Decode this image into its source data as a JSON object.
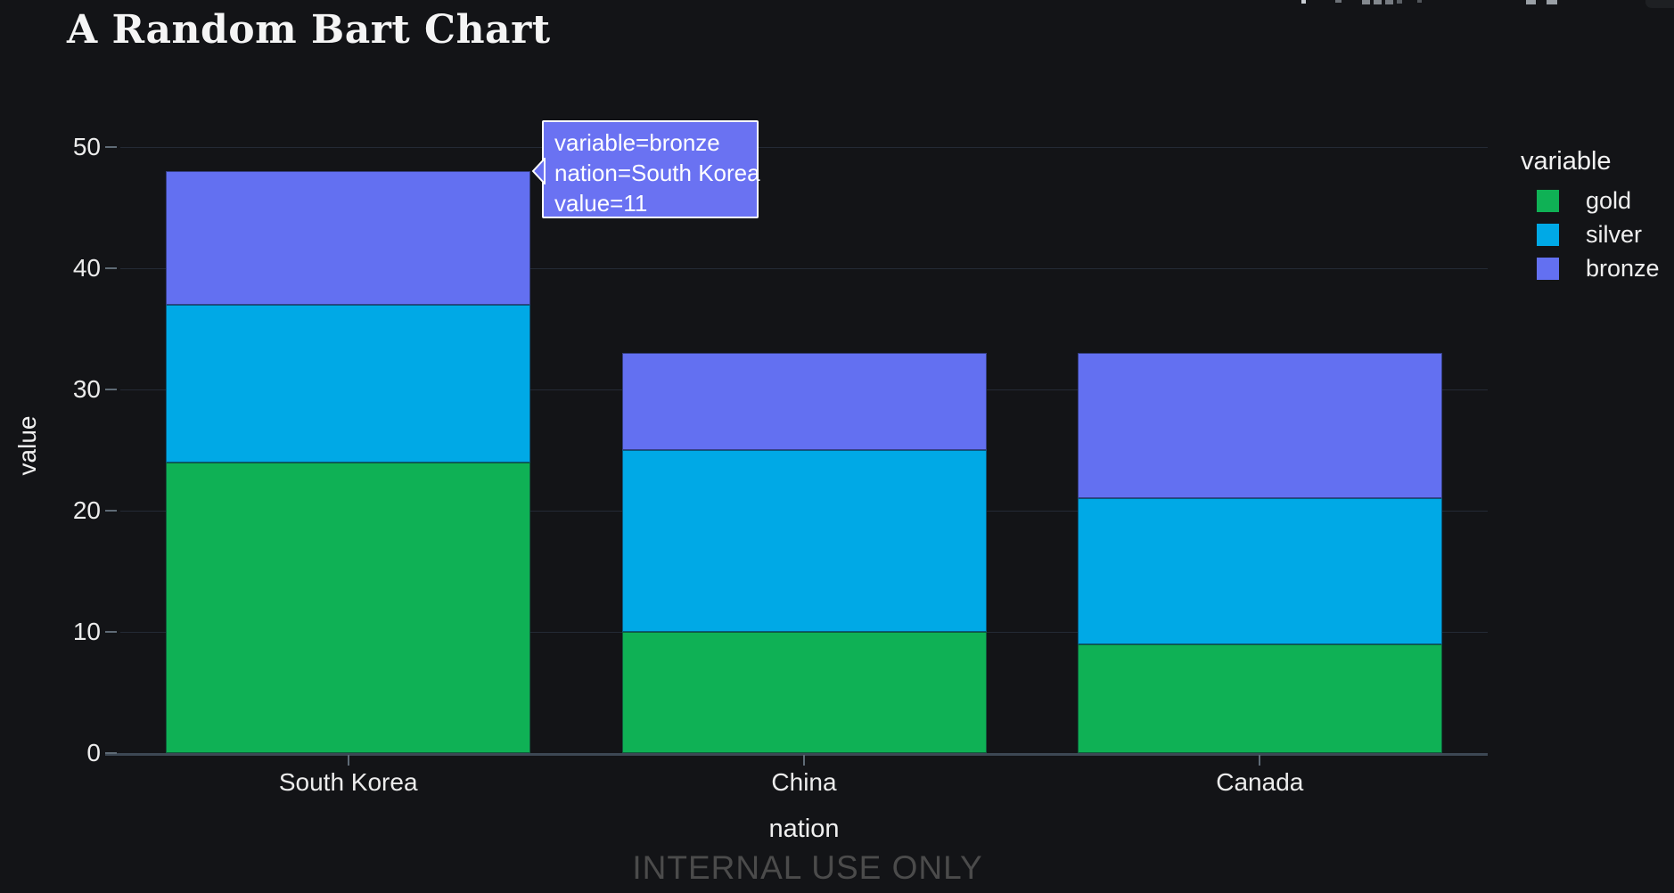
{
  "title": "A Random Bart Chart",
  "watermark": "INTERNAL USE ONLY",
  "legend": {
    "title": "variable"
  },
  "tooltip": {
    "line1": "variable=bronze",
    "line2": "nation=South Korea",
    "line3": "value=11",
    "background": "#6a72f2",
    "border_color": "#ffffff",
    "points_to": "South Korea bronze segment"
  },
  "colors": {
    "background": "#131417",
    "grid": "rgba(130,160,210,0.16)",
    "axis_line": "#3d4854",
    "tick": "#5f6b76",
    "label": "#ececec",
    "watermark": "#4b4b4b"
  },
  "toolbar": {
    "icons": [
      "cut-off-toolbar-icon-1",
      "cut-off-toolbar-icon-2",
      "cut-off-toolbar-icon-3",
      "cut-off-toolbar-icon-4",
      "cut-off-toolbar-icon-5",
      "cut-off-toolbar-icon-6",
      "cut-off-toolbar-icon-7",
      "cut-off-toolbar-icon-8",
      "window-corner-tab"
    ]
  },
  "chart_data": {
    "type": "bar",
    "stacked": true,
    "title": "A Random Bart Chart",
    "xlabel": "nation",
    "ylabel": "value",
    "categories": [
      "South Korea",
      "China",
      "Canada"
    ],
    "series": [
      {
        "name": "gold",
        "color": "#0fb155",
        "values": [
          24,
          10,
          9
        ]
      },
      {
        "name": "silver",
        "color": "#00a9e6",
        "values": [
          13,
          15,
          12
        ]
      },
      {
        "name": "bronze",
        "color": "#6370f1",
        "values": [
          11,
          8,
          12
        ]
      }
    ],
    "stack_totals": [
      48,
      33,
      33
    ],
    "ylim": [
      0,
      50
    ],
    "yticks": [
      0,
      10,
      20,
      30,
      40,
      50
    ],
    "grid": "horizontal",
    "legend_position": "right",
    "legend_title": "variable"
  }
}
